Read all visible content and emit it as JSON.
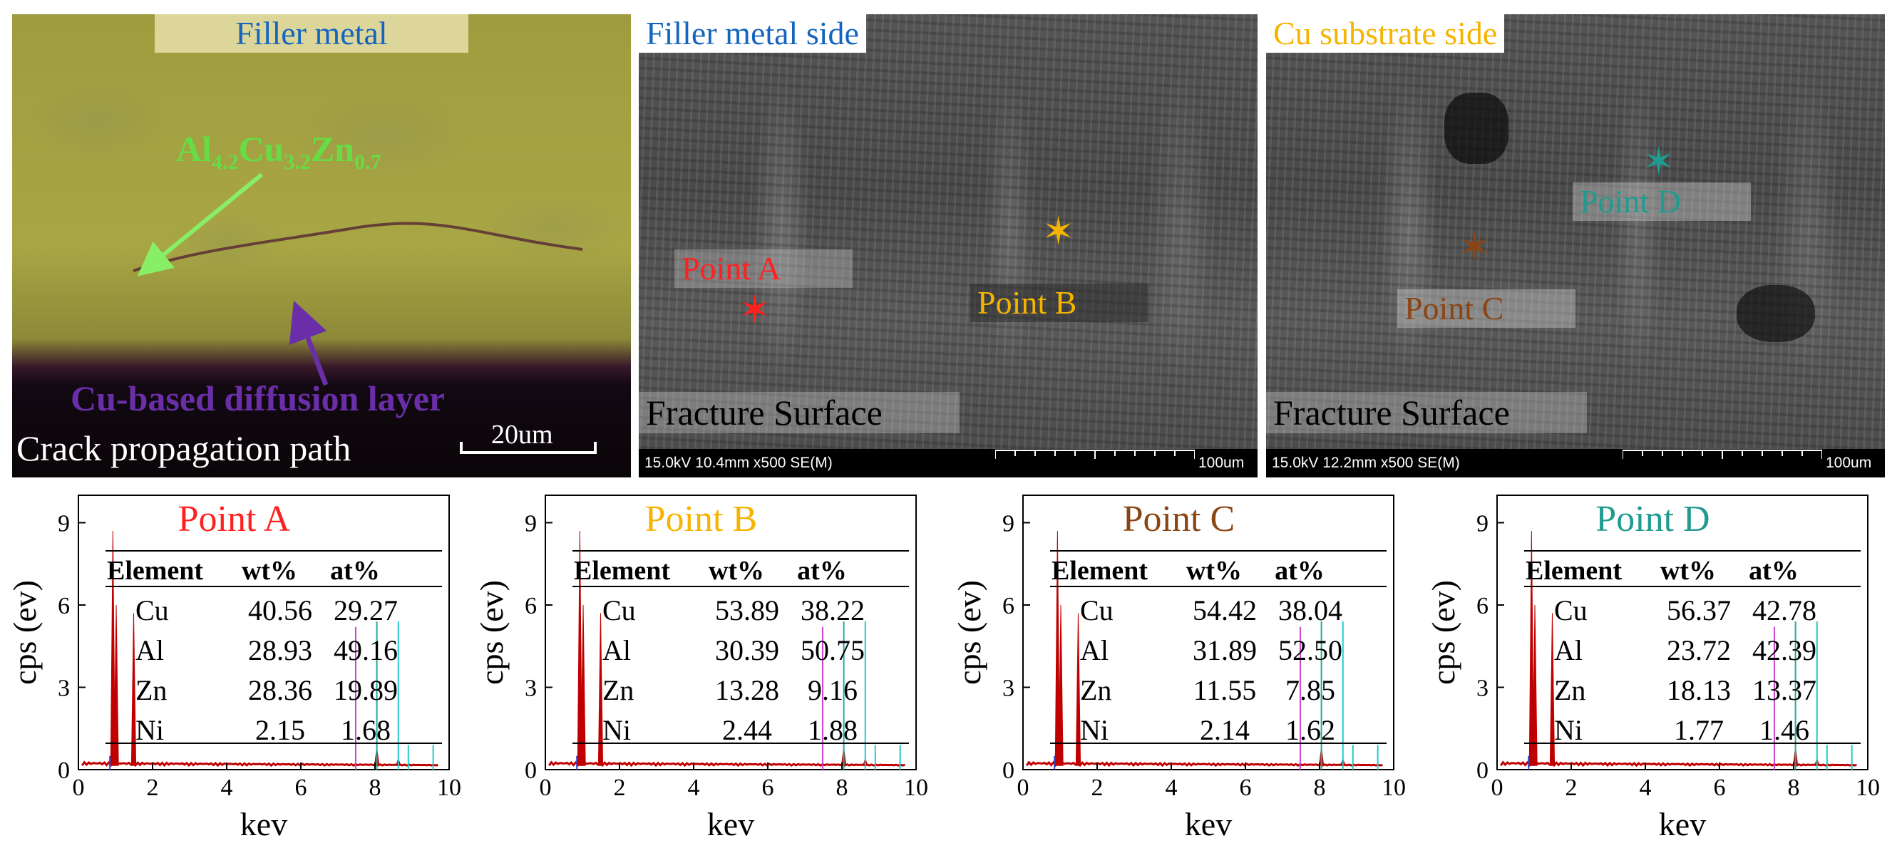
{
  "top_panels": {
    "optical": {
      "title": "Filler metal",
      "phase_label_main": "Al",
      "phase_sub1": "4.2",
      "phase_mid": "Cu",
      "phase_sub2": "3.2",
      "phase_mid2": "Zn",
      "phase_sub3": "0.7",
      "diffusion_label": "Cu-based diffusion layer",
      "crack_label": "Crack propagation path",
      "scale_label": "20um"
    },
    "sem_left": {
      "title": "Filler metal side",
      "point_a": "Point A",
      "point_b": "Point B",
      "surface_label": "Fracture Surface",
      "info": "15.0kV 10.4mm x500 SE(M)",
      "scale": "100um"
    },
    "sem_right": {
      "title": "Cu substrate side",
      "point_c": "Point C",
      "point_d": "Point D",
      "surface_label": "Fracture Surface",
      "info": "15.0kV 12.2mm x500 SE(M)",
      "scale": "100um"
    }
  },
  "colors": {
    "point_a": "#ff2020",
    "point_b": "#f4b400",
    "point_c": "#8b4513",
    "point_d": "#1f9b8f",
    "optical_title": "#1565c0",
    "sem_left_title": "#1565c0",
    "sem_right_title": "#f4b400",
    "phase_label": "#66dd44",
    "diffusion_label": "#6a2fa8"
  },
  "eds_panels": [
    {
      "title": "Point A",
      "ylabel": "cps (ev)",
      "xlabel": "kev",
      "yticks": [
        "0",
        "3",
        "6",
        "9"
      ],
      "xticks": [
        "0",
        "2",
        "4",
        "6",
        "8",
        "10"
      ],
      "table_headers": [
        "Element",
        "wt%",
        "at%"
      ],
      "rows": [
        [
          "Cu",
          "40.56",
          "29.27"
        ],
        [
          "Al",
          "28.93",
          "49.16"
        ],
        [
          "Zn",
          "28.36",
          "19.89"
        ],
        [
          "Ni",
          "2.15",
          "1.68"
        ]
      ]
    },
    {
      "title": "Point B",
      "ylabel": "cps (ev)",
      "xlabel": "kev",
      "yticks": [
        "0",
        "3",
        "6",
        "9"
      ],
      "xticks": [
        "0",
        "2",
        "4",
        "6",
        "8",
        "10"
      ],
      "table_headers": [
        "Element",
        "wt%",
        "at%"
      ],
      "rows": [
        [
          "Cu",
          "53.89",
          "38.22"
        ],
        [
          "Al",
          "30.39",
          "50.75"
        ],
        [
          "Zn",
          "13.28",
          "9.16"
        ],
        [
          "Ni",
          "2.44",
          "1.88"
        ]
      ]
    },
    {
      "title": "Point C",
      "ylabel": "cps (ev)",
      "xlabel": "kev",
      "yticks": [
        "0",
        "3",
        "6",
        "9"
      ],
      "xticks": [
        "0",
        "2",
        "4",
        "6",
        "8",
        "10"
      ],
      "table_headers": [
        "Element",
        "wt%",
        "at%"
      ],
      "rows": [
        [
          "Cu",
          "54.42",
          "38.04"
        ],
        [
          "Al",
          "31.89",
          "52.50"
        ],
        [
          "Zn",
          "11.55",
          "7.85"
        ],
        [
          "Ni",
          "2.14",
          "1.62"
        ]
      ]
    },
    {
      "title": "Point D",
      "ylabel": "cps (ev)",
      "xlabel": "kev",
      "yticks": [
        "0",
        "3",
        "6",
        "9"
      ],
      "xticks": [
        "0",
        "2",
        "4",
        "6",
        "8",
        "10"
      ],
      "table_headers": [
        "Element",
        "wt%",
        "at%"
      ],
      "rows": [
        [
          "Cu",
          "56.37",
          "42.78"
        ],
        [
          "Al",
          "23.72",
          "42.39"
        ],
        [
          "Zn",
          "18.13",
          "13.37"
        ],
        [
          "Ni",
          "1.77",
          "1.46"
        ]
      ]
    }
  ]
}
